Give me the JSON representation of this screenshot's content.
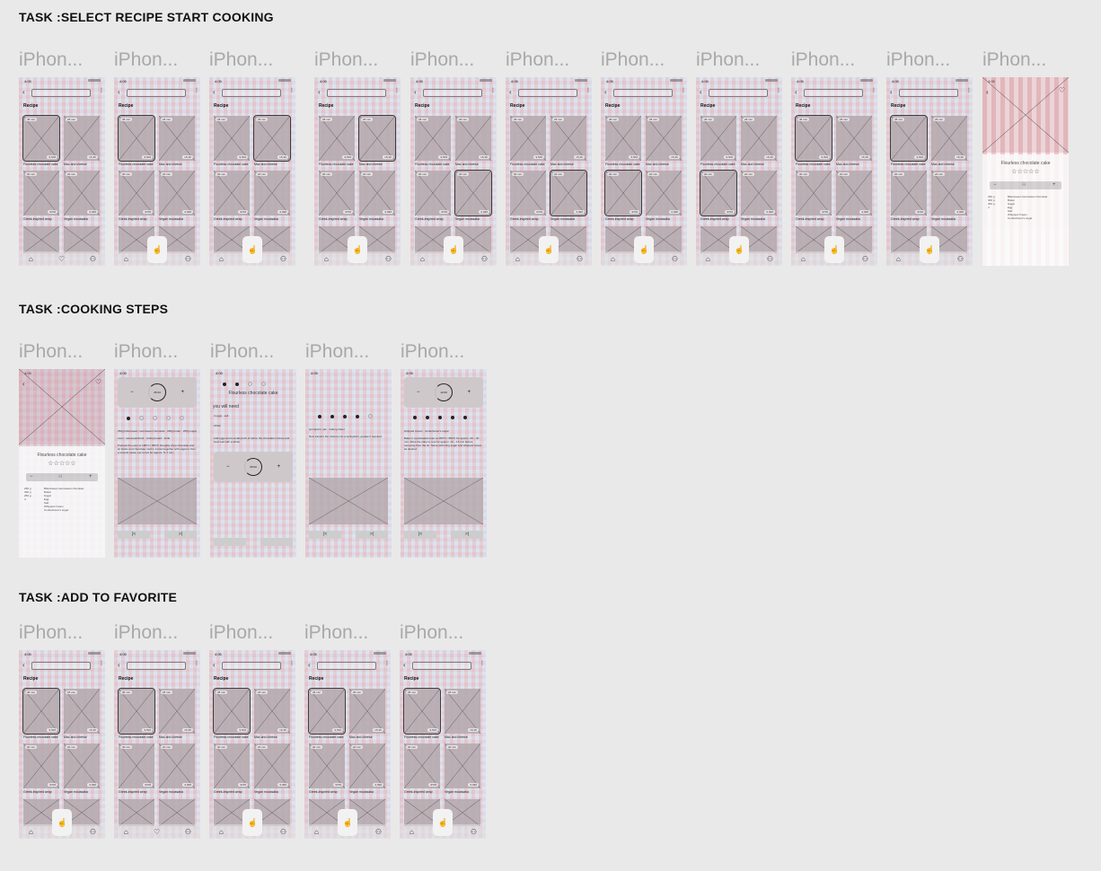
{
  "tasks": [
    {
      "title": "TASK :SELECT RECIPE START COOKING"
    },
    {
      "title": "TASK :COOKING STEPS"
    },
    {
      "title": "TASK :ADD TO FAVORITE"
    }
  ],
  "frame_label": "iPhon...",
  "status_time": "4:05",
  "recipe_title": "Recipe",
  "cards": [
    {
      "time": "45 min",
      "likes": "9,500",
      "name": "Flourless chocolate cake"
    },
    {
      "time": "25 min",
      "likes": "15,3K",
      "name": "Mac and cheese"
    },
    {
      "time": "30 min",
      "likes": "9700",
      "name": "Greek-inspired wrap"
    },
    {
      "time": "20 min",
      "likes": "6,990",
      "name": "Vegan moussaka"
    }
  ],
  "detail": {
    "name": "Flourless chocolate cake",
    "stars": "☆☆☆☆☆",
    "minus": "−",
    "plus": "+",
    "ingredients": [
      {
        "q": "250 g",
        "i": "Bittersweet /semisweet chocolate"
      },
      {
        "q": "300 g",
        "i": "Butter"
      },
      {
        "q": "250 g",
        "i": "Sugar"
      },
      {
        "q": "4",
        "i": "Egg"
      },
      {
        "q": "",
        "i": "Salt"
      },
      {
        "q": "",
        "i": "Whipped Cream"
      },
      {
        "q": "",
        "i": "Confectioner's sugar"
      }
    ]
  },
  "steps": {
    "t1": "25:43",
    "step1_a": "250g bittersweet / semisweet chocolate · 300g butter · 250g sugar",
    "step1_b": "oven · saucepan/bowl · cutting board · knife",
    "step1_text": "Preheat the oven to 180°C / 350°F. Roughly chop chocolate and let butter and chocolate melt in a bowl together with sugar to form a smooth paste. Let it cool for approx. 5–7 min.",
    "popup_top": "Let's finish heating chocolate",
    "popup_name": "Flourless chocolate cake",
    "you_need": "you will need",
    "need_1": "4 eggs · salt",
    "need_2": "whisk",
    "need_text": "Add eggs and a small pinch of salt to the chocolate mixture and beat well with a whisk.",
    "t2": "05:00",
    "step4_a": "springform pan · baking sheet",
    "step4_text": "Now transfer the mixture into a springform, grease if required.",
    "t3": "12:00",
    "step5_a": "whipped cream · confectioner's sugar",
    "step5_text": "Bake in a preheated oven at 180°C / 350°F for approx. 30 – 40 min. Allow the cake to cool for approx. 10 – 15 min before removing from the tin. Serve with icing sugar and whipped cream as desired."
  },
  "icons": {
    "back": "‹",
    "filter": "⫶⫶",
    "heart": "♡",
    "home": "⌂",
    "person": "⚇",
    "hand": "☝",
    "prev": "|<",
    "next": ">|"
  }
}
